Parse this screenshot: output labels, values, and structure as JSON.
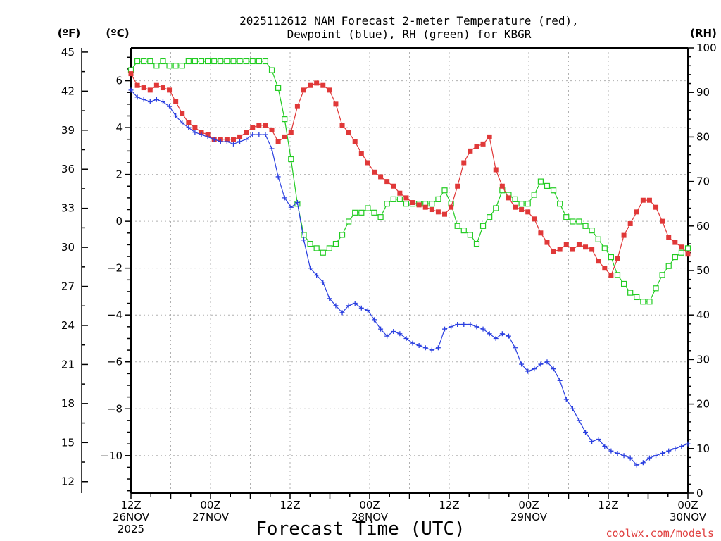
{
  "chart_data": {
    "type": "line",
    "title": [
      "2025112612 NAM Forecast 2-meter Temperature (red),",
      "Dewpoint (blue), RH (green) for KBGR"
    ],
    "xlabel": "Forecast Time (UTC)",
    "credit": "coolwx.com/models",
    "credit_color": "#e04040",
    "unit_labels": {
      "left_f": "(ºF)",
      "left_c": "(ºC)",
      "right": "(RH)"
    },
    "x_range_hours": [
      0,
      84
    ],
    "x_ticks": [
      {
        "hour": 0,
        "label": [
          "12Z",
          "26NOV",
          "2025"
        ]
      },
      {
        "hour": 12,
        "label": [
          "00Z",
          "27NOV"
        ]
      },
      {
        "hour": 24,
        "label": [
          "12Z"
        ]
      },
      {
        "hour": 36,
        "label": [
          "00Z",
          "28NOV"
        ]
      },
      {
        "hour": 48,
        "label": [
          "12Z"
        ]
      },
      {
        "hour": 60,
        "label": [
          "00Z",
          "29NOV"
        ]
      },
      {
        "hour": 72,
        "label": [
          "12Z"
        ]
      },
      {
        "hour": 84,
        "label": [
          "00Z",
          "30NOV"
        ]
      }
    ],
    "y_celsius": {
      "range": [
        -11.6,
        7.4
      ],
      "ticks": [
        6,
        4,
        2,
        0,
        -2,
        -4,
        -6,
        -8,
        -10
      ],
      "tick_labels": [
        "6",
        "4",
        "2",
        "0",
        "−2",
        "−4",
        "−6",
        "−8",
        "−10"
      ]
    },
    "y_fahrenheit": {
      "ticks": [
        45,
        42,
        39,
        36,
        33,
        30,
        27,
        24,
        21,
        18,
        15,
        12
      ],
      "tick_labels": [
        "45",
        "42",
        "39",
        "36",
        "33",
        "30",
        "27",
        "24",
        "21",
        "18",
        "15",
        "12"
      ]
    },
    "y_rh": {
      "range": [
        0,
        100
      ],
      "ticks": [
        100,
        90,
        80,
        70,
        60,
        50,
        40,
        30,
        20,
        10,
        0
      ],
      "tick_labels": [
        "100",
        "90",
        "80",
        "70",
        "60",
        "50",
        "40",
        "30",
        "20",
        "10",
        "0"
      ]
    },
    "series": [
      {
        "name": "Temperature",
        "axis": "celsius",
        "color": "#e03838",
        "marker": "filled-square",
        "values": [
          6.3,
          5.8,
          5.7,
          5.6,
          5.8,
          5.7,
          5.6,
          5.1,
          4.6,
          4.2,
          4.0,
          3.8,
          3.7,
          3.5,
          3.5,
          3.5,
          3.5,
          3.6,
          3.8,
          4.0,
          4.1,
          4.1,
          3.9,
          3.4,
          3.6,
          3.8,
          4.9,
          5.6,
          5.8,
          5.9,
          5.8,
          5.6,
          5.0,
          4.1,
          3.8,
          3.4,
          2.9,
          2.5,
          2.1,
          1.9,
          1.7,
          1.5,
          1.2,
          1.0,
          0.8,
          0.7,
          0.6,
          0.5,
          0.4,
          0.3,
          0.6,
          1.5,
          2.5,
          3.0,
          3.2,
          3.3,
          3.6,
          2.2,
          1.5,
          1.0,
          0.6,
          0.5,
          0.4,
          0.1,
          -0.5,
          -0.9,
          -1.3,
          -1.2,
          -1.0,
          -1.2,
          -1.0,
          -1.1,
          -1.2,
          -1.7,
          -2.0,
          -2.3,
          -1.6,
          -0.6,
          -0.1,
          0.4,
          0.9,
          0.9,
          0.6,
          0.0,
          -0.7,
          -0.9,
          -1.1,
          -1.4
        ]
      },
      {
        "name": "Dewpoint",
        "axis": "celsius",
        "color": "#2a3fe0",
        "marker": "plus",
        "values": [
          5.6,
          5.3,
          5.2,
          5.1,
          5.2,
          5.1,
          4.9,
          4.5,
          4.2,
          4.0,
          3.8,
          3.7,
          3.6,
          3.5,
          3.4,
          3.4,
          3.3,
          3.4,
          3.5,
          3.7,
          3.7,
          3.7,
          3.1,
          1.9,
          1.0,
          0.6,
          0.8,
          -0.8,
          -2.0,
          -2.3,
          -2.6,
          -3.3,
          -3.6,
          -3.9,
          -3.6,
          -3.5,
          -3.7,
          -3.8,
          -4.2,
          -4.6,
          -4.9,
          -4.7,
          -4.8,
          -5.0,
          -5.2,
          -5.3,
          -5.4,
          -5.5,
          -5.4,
          -4.6,
          -4.5,
          -4.4,
          -4.4,
          -4.4,
          -4.5,
          -4.6,
          -4.8,
          -5.0,
          -4.8,
          -4.9,
          -5.4,
          -6.1,
          -6.4,
          -6.3,
          -6.1,
          -6.0,
          -6.3,
          -6.8,
          -7.6,
          -8.0,
          -8.5,
          -9.0,
          -9.4,
          -9.3,
          -9.6,
          -9.8,
          -9.9,
          -10.0,
          -10.1,
          -10.4,
          -10.3,
          -10.1,
          -10.0,
          -9.9,
          -9.8,
          -9.7,
          -9.6,
          -9.5
        ]
      },
      {
        "name": "RH",
        "axis": "rh",
        "color": "#22cc22",
        "marker": "open-square",
        "values": [
          95,
          97,
          97,
          97,
          96,
          97,
          96,
          96,
          96,
          97,
          97,
          97,
          97,
          97,
          97,
          97,
          97,
          97,
          97,
          97,
          97,
          97,
          95,
          91,
          84,
          75,
          65,
          58,
          56,
          55,
          54,
          55,
          56,
          58,
          61,
          63,
          63,
          64,
          63,
          62,
          65,
          66,
          66,
          65,
          65,
          65,
          65,
          65,
          66,
          68,
          65,
          60,
          59,
          58,
          56,
          60,
          62,
          64,
          68,
          67,
          66,
          65,
          65,
          67,
          70,
          69,
          68,
          65,
          62,
          61,
          61,
          60,
          59,
          57,
          55,
          53,
          49,
          47,
          45,
          44,
          43,
          43,
          46,
          49,
          51,
          53,
          54,
          55
        ]
      }
    ]
  }
}
